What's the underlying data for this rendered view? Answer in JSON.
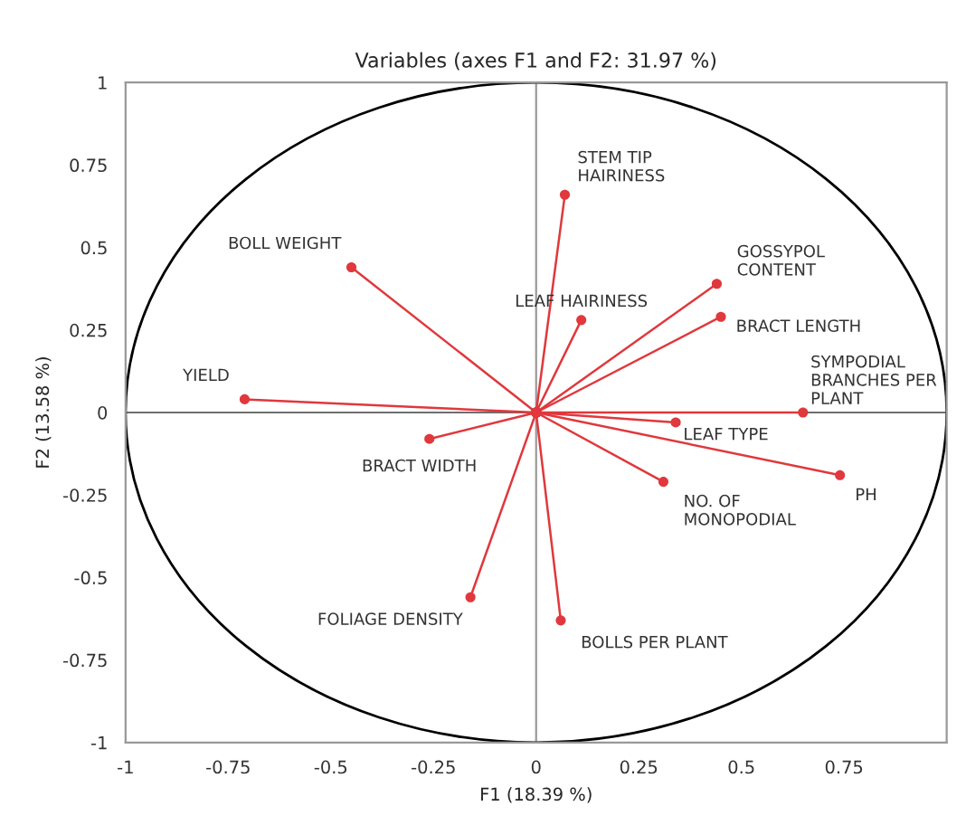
{
  "chart_data": {
    "type": "line",
    "title": "Variables (axes F1 and F2: 31.97 %)",
    "xlabel": "F1 (18.39 %)",
    "ylabel": "F2 (13.58 %)",
    "xlim": [
      -1,
      1
    ],
    "ylim": [
      -1,
      1
    ],
    "xticks": [
      -1,
      -0.75,
      -0.5,
      -0.25,
      0,
      0.25,
      0.5,
      0.75
    ],
    "yticks": [
      -1,
      -0.75,
      -0.5,
      -0.25,
      0,
      0.25,
      0.5,
      0.75,
      1
    ],
    "grid": false,
    "legend": false,
    "marker": "circle",
    "line_style": "solid",
    "ref_lines": [
      {
        "axis": "x",
        "value": 0,
        "color": "#9a9a9a"
      },
      {
        "axis": "y",
        "value": 0,
        "color": "#6e6e6e"
      }
    ],
    "series": [
      {
        "name": "STEM TIP\nHAIRINESS",
        "color": "#e0383c",
        "x": [
          0,
          0.07
        ],
        "values": [
          0,
          0.66
        ]
      },
      {
        "name": "BOLL WEIGHT",
        "color": "#e0383c",
        "x": [
          0,
          -0.45
        ],
        "values": [
          0,
          0.44
        ]
      },
      {
        "name": "GOSSYPOL\nCONTENT",
        "color": "#e0383c",
        "x": [
          0,
          0.44
        ],
        "values": [
          0,
          0.39
        ]
      },
      {
        "name": "LEAF HAIRINESS",
        "color": "#e0383c",
        "x": [
          0,
          0.11
        ],
        "values": [
          0,
          0.28
        ]
      },
      {
        "name": "BRACT LENGTH",
        "color": "#e0383c",
        "x": [
          0,
          0.45
        ],
        "values": [
          0,
          0.29
        ]
      },
      {
        "name": "YIELD",
        "color": "#e0383c",
        "x": [
          0,
          -0.71
        ],
        "values": [
          0,
          0.04
        ]
      },
      {
        "name": "SYMPODIAL\nBRANCHES PER\nPLANT",
        "color": "#e0383c",
        "x": [
          0,
          0.65
        ],
        "values": [
          0,
          0.0
        ]
      },
      {
        "name": "LEAF TYPE",
        "color": "#e0383c",
        "x": [
          0,
          0.34
        ],
        "values": [
          0,
          -0.03
        ]
      },
      {
        "name": "BRACT WIDTH",
        "color": "#e0383c",
        "x": [
          0,
          -0.26
        ],
        "values": [
          0,
          -0.08
        ]
      },
      {
        "name": "PH",
        "color": "#e0383c",
        "x": [
          0,
          0.74
        ],
        "values": [
          0,
          -0.19
        ]
      },
      {
        "name": "NO. OF\nMONOPODIAL",
        "color": "#e0383c",
        "x": [
          0,
          0.31
        ],
        "values": [
          0,
          -0.21
        ]
      },
      {
        "name": "FOLIAGE DENSITY",
        "color": "#e0383c",
        "x": [
          0,
          -0.16
        ],
        "values": [
          0,
          -0.56
        ]
      },
      {
        "name": "BOLLS PER PLANT",
        "color": "#e0383c",
        "x": [
          0,
          0.06
        ],
        "values": [
          0,
          -0.63
        ]
      }
    ]
  }
}
